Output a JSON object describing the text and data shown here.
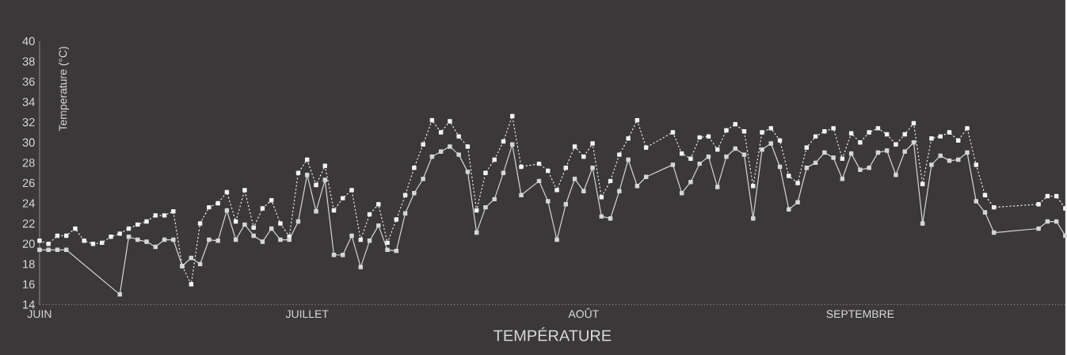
{
  "chart_data": {
    "type": "line",
    "title": "TEMPÉRATURE",
    "ylabel": "Temperature (°C)",
    "ylim": [
      14,
      40
    ],
    "yticks": [
      14,
      16,
      18,
      20,
      22,
      24,
      26,
      28,
      30,
      32,
      34,
      36,
      38,
      40
    ],
    "categories": [
      "JUIN",
      null,
      null,
      null,
      null,
      null,
      null,
      null,
      null,
      null,
      null,
      null,
      null,
      null,
      null,
      null,
      null,
      null,
      null,
      null,
      null,
      null,
      null,
      null,
      null,
      null,
      null,
      null,
      null,
      null,
      "JUILLET",
      null,
      null,
      null,
      null,
      null,
      null,
      null,
      null,
      null,
      null,
      null,
      null,
      null,
      null,
      null,
      null,
      null,
      null,
      null,
      null,
      null,
      null,
      null,
      null,
      null,
      null,
      null,
      null,
      null,
      null,
      "AOÛT",
      null,
      null,
      null,
      null,
      null,
      null,
      null,
      null,
      null,
      null,
      null,
      null,
      null,
      null,
      null,
      null,
      null,
      null,
      null,
      null,
      null,
      null,
      null,
      null,
      null,
      null,
      null,
      null,
      null,
      null,
      "SEPTEMBRE",
      null,
      null,
      null,
      null,
      null,
      null,
      null,
      null,
      null,
      null,
      null,
      null,
      null,
      null,
      null,
      null,
      null,
      null,
      null,
      null,
      null,
      null,
      null
    ],
    "marker": "square",
    "series": [
      {
        "color": "#f2f2f2",
        "line_style": "dotted",
        "values": [
          20.3,
          20.0,
          20.8,
          20.8,
          21.5,
          20.3,
          20.0,
          20.1,
          20.7,
          21.0,
          21.5,
          21.9,
          22.2,
          22.8,
          22.8,
          23.2,
          17.8,
          16.0,
          22.0,
          23.6,
          24.0,
          25.1,
          22.2,
          25.3,
          21.6,
          23.5,
          24.3,
          22.0,
          20.7,
          27.0,
          28.3,
          25.8,
          27.7,
          23.3,
          24.5,
          25.3,
          20.4,
          22.9,
          23.9,
          20.1,
          22.4,
          24.8,
          27.5,
          29.8,
          32.2,
          31.0,
          32.1,
          30.6,
          29.6,
          23.3,
          27.0,
          28.3,
          30.1,
          32.6,
          27.6,
          null,
          27.9,
          27.2,
          25.3,
          27.5,
          29.6,
          28.6,
          29.9,
          24.6,
          26.2,
          28.8,
          30.4,
          32.2,
          29.5,
          null,
          null,
          31.0,
          28.9,
          28.4,
          30.5,
          30.6,
          29.3,
          31.2,
          31.8,
          31.1,
          25.7,
          31.0,
          31.4,
          30.2,
          26.7,
          26.0,
          29.5,
          30.6,
          31.1,
          31.4,
          28.4,
          30.9,
          30.0,
          31.0,
          31.4,
          30.8,
          29.8,
          30.8,
          31.9,
          25.9,
          30.4,
          30.6,
          31.0,
          30.2,
          31.4,
          27.8,
          24.8,
          23.6,
          null,
          null,
          null,
          null,
          23.9,
          24.7,
          24.7,
          23.5
        ]
      },
      {
        "color": "#d6d6d6",
        "line_style": "solid",
        "values": [
          19.4,
          19.4,
          19.4,
          19.4,
          null,
          null,
          null,
          null,
          null,
          15.0,
          20.7,
          20.4,
          20.2,
          19.7,
          20.4,
          20.4,
          17.8,
          18.6,
          18.0,
          20.4,
          20.3,
          23.3,
          20.4,
          21.9,
          20.8,
          20.2,
          21.5,
          20.4,
          20.4,
          22.2,
          26.8,
          23.2,
          26.3,
          18.9,
          18.9,
          20.8,
          17.7,
          20.3,
          21.8,
          19.4,
          19.3,
          23.0,
          25.0,
          26.4,
          28.6,
          29.1,
          29.6,
          28.8,
          27.1,
          21.1,
          23.6,
          24.4,
          27.0,
          29.8,
          24.8,
          null,
          26.2,
          24.2,
          20.4,
          23.9,
          26.4,
          25.2,
          27.5,
          22.7,
          22.5,
          25.2,
          28.3,
          25.7,
          26.6,
          null,
          null,
          27.8,
          25.0,
          26.1,
          27.9,
          28.6,
          25.6,
          28.6,
          29.4,
          28.8,
          22.5,
          29.3,
          29.9,
          27.6,
          23.4,
          24.1,
          27.5,
          28.0,
          29.0,
          28.5,
          26.4,
          28.9,
          27.3,
          27.5,
          29.0,
          29.2,
          26.8,
          29.1,
          30.0,
          22.0,
          27.8,
          28.7,
          28.2,
          28.3,
          29.0,
          24.2,
          23.1,
          21.1,
          null,
          null,
          null,
          null,
          21.5,
          22.2,
          22.2,
          20.8
        ]
      }
    ]
  }
}
